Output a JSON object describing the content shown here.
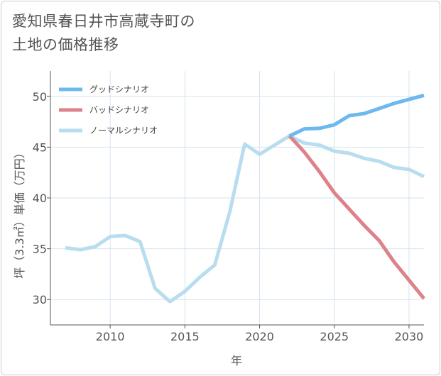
{
  "title_line1": "愛知県春日井市高蔵寺町の",
  "title_line2": "土地の価格推移",
  "chart_data": {
    "type": "line",
    "title": "愛知県春日井市高蔵寺町の土地の価格推移",
    "xlabel": "年",
    "ylabel": "坪（3.3㎡）単価（万円）",
    "xlim": [
      2006,
      2031
    ],
    "ylim": [
      27.5,
      52.5
    ],
    "xticks": [
      2010,
      2015,
      2020,
      2025,
      2030
    ],
    "yticks": [
      30,
      35,
      40,
      45,
      50
    ],
    "grid": true,
    "legend_position": "top-left",
    "series": [
      {
        "name": "グッドシナリオ",
        "color": "#6cb8ef",
        "x": [
          2022,
          2023,
          2024,
          2025,
          2026,
          2027,
          2028,
          2029,
          2030,
          2031
        ],
        "y": [
          46.1,
          46.8,
          46.85,
          47.2,
          48.1,
          48.3,
          48.8,
          49.3,
          49.7,
          50.1
        ]
      },
      {
        "name": "バッドシナリオ",
        "color": "#dd8288",
        "x": [
          2022,
          2023,
          2024,
          2025,
          2026,
          2027,
          2028,
          2029,
          2030,
          2031
        ],
        "y": [
          46.1,
          44.5,
          42.6,
          40.5,
          38.9,
          37.3,
          35.8,
          33.7,
          31.9,
          30.1
        ]
      },
      {
        "name": "ノーマルシナリオ",
        "color": "#b8ddef",
        "x": [
          2007,
          2008,
          2009,
          2010,
          2011,
          2012,
          2013,
          2014,
          2015,
          2016,
          2017,
          2018,
          2019,
          2020,
          2021,
          2022,
          2023,
          2024,
          2025,
          2026,
          2027,
          2028,
          2029,
          2030,
          2031
        ],
        "y": [
          35.1,
          34.9,
          35.2,
          36.2,
          36.3,
          35.7,
          31.1,
          29.8,
          30.8,
          32.2,
          33.4,
          38.6,
          45.3,
          44.3,
          45.2,
          46.1,
          45.4,
          45.2,
          44.6,
          44.4,
          43.9,
          43.6,
          43.0,
          42.8,
          42.1
        ]
      }
    ]
  }
}
